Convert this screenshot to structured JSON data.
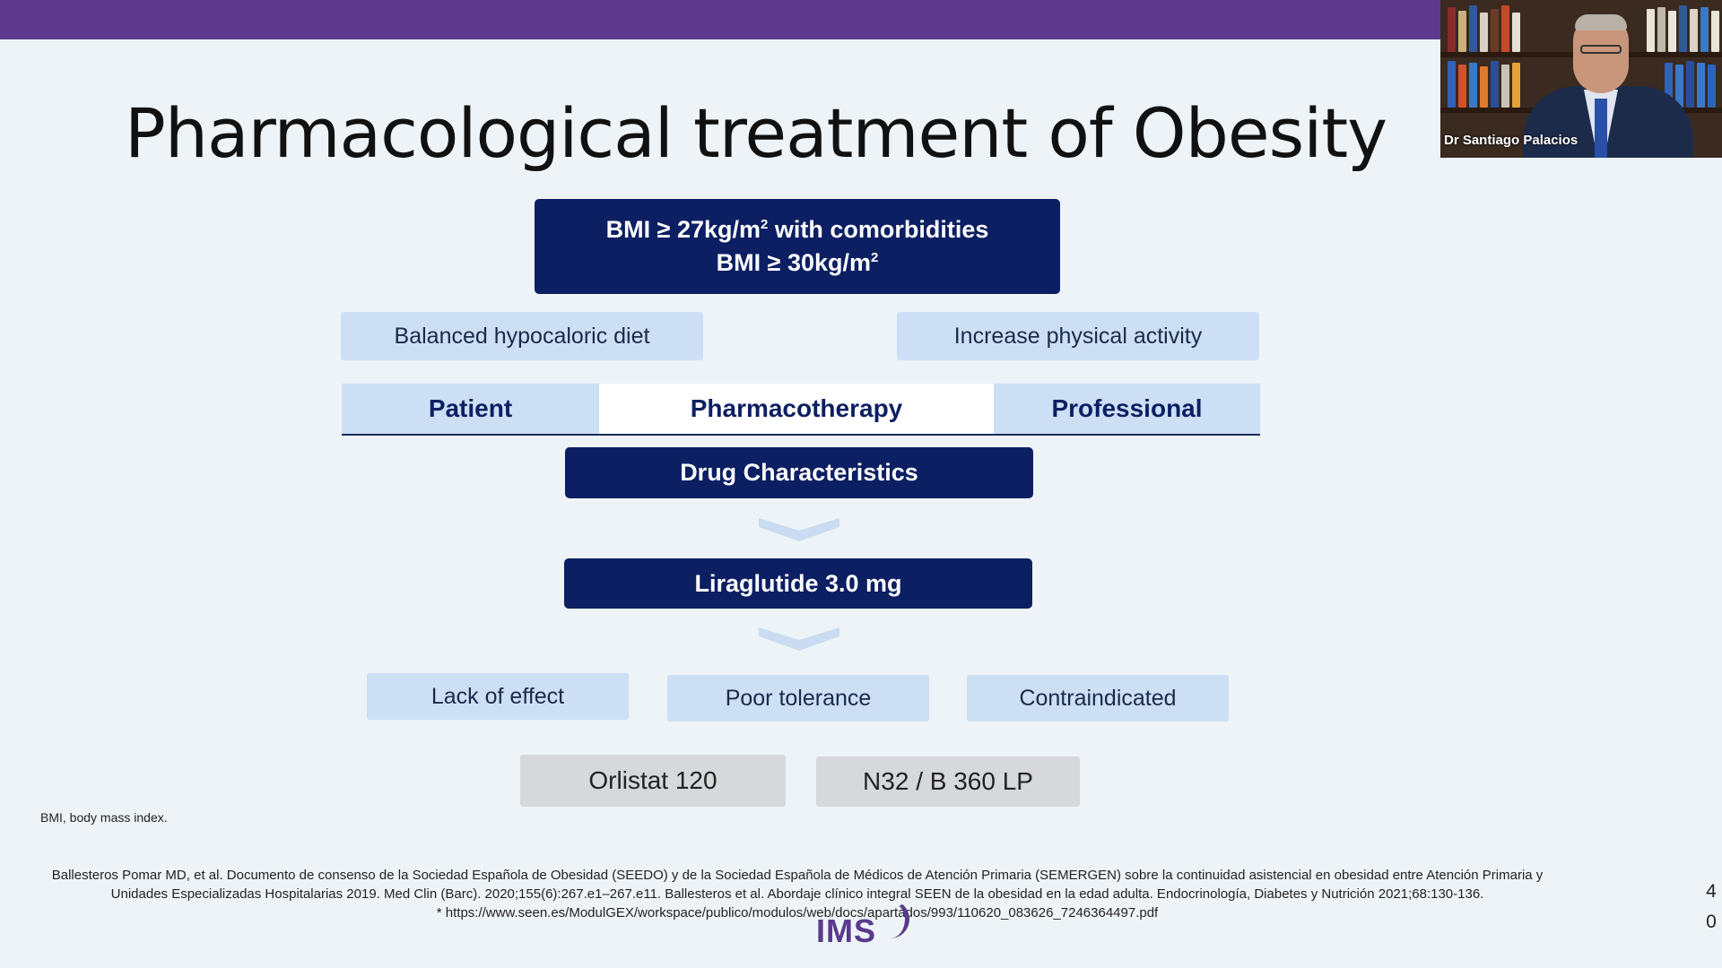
{
  "title": "Pharmacological treatment of Obesity",
  "webcam": {
    "name": "Dr Santiago Palacios"
  },
  "diagram": {
    "criteria": {
      "line1_prefix": "BMI ≥ 27kg/m",
      "line1_sup": "2",
      "line1_suffix": " with comorbidities",
      "line2_prefix": "BMI ≥ 30kg/m",
      "line2_sup": "2"
    },
    "lifestyle": [
      "Balanced hypocaloric diet",
      "Increase physical activity"
    ],
    "tabs": [
      "Patient",
      "Pharmacotherapy",
      "Professional"
    ],
    "drug_characteristics": "Drug Characteristics",
    "first_line": "Liraglutide 3.0 mg",
    "reasons": [
      "Lack of effect",
      "Poor tolerance",
      "Contraindicated"
    ],
    "alternatives": [
      "Orlistat 120",
      "N32 / B 360 LP"
    ]
  },
  "footnote": "BMI, body mass index.",
  "reference": {
    "line1": "Ballesteros Pomar MD, et al. Documento de consenso de la Sociedad Española de Obesidad (SEEDO) y de la Sociedad Española de  Médicos de Atención Primaria (SEMERGEN) sobre la continuidad asistencial en obesidad entre Atención Primaria y",
    "line2": "Unidades  Especializadas Hospitalarias 2019. Med Clin (Barc). 2020;155(6):267.e1–267.e11. Ballesteros et al. Abordaje clínico integral SEEN de la obesidad en la edad adulta. Endocrinología, Diabetes y Nutrición 2021;68:130-136.",
    "line3": "* https://www.seen.es/ModulGEX/workspace/publico/modulos/web/docs/apartados/993/110620_083626_7246364497.pdf"
  },
  "logo": "IMS",
  "page_number": [
    "4",
    "0"
  ],
  "colors": {
    "accent_purple": "#5e3a8c",
    "dark_navy": "#0d1f63",
    "light_blue": "#cddff4",
    "grey": "#d6d8db",
    "background": "#eef3f8"
  }
}
